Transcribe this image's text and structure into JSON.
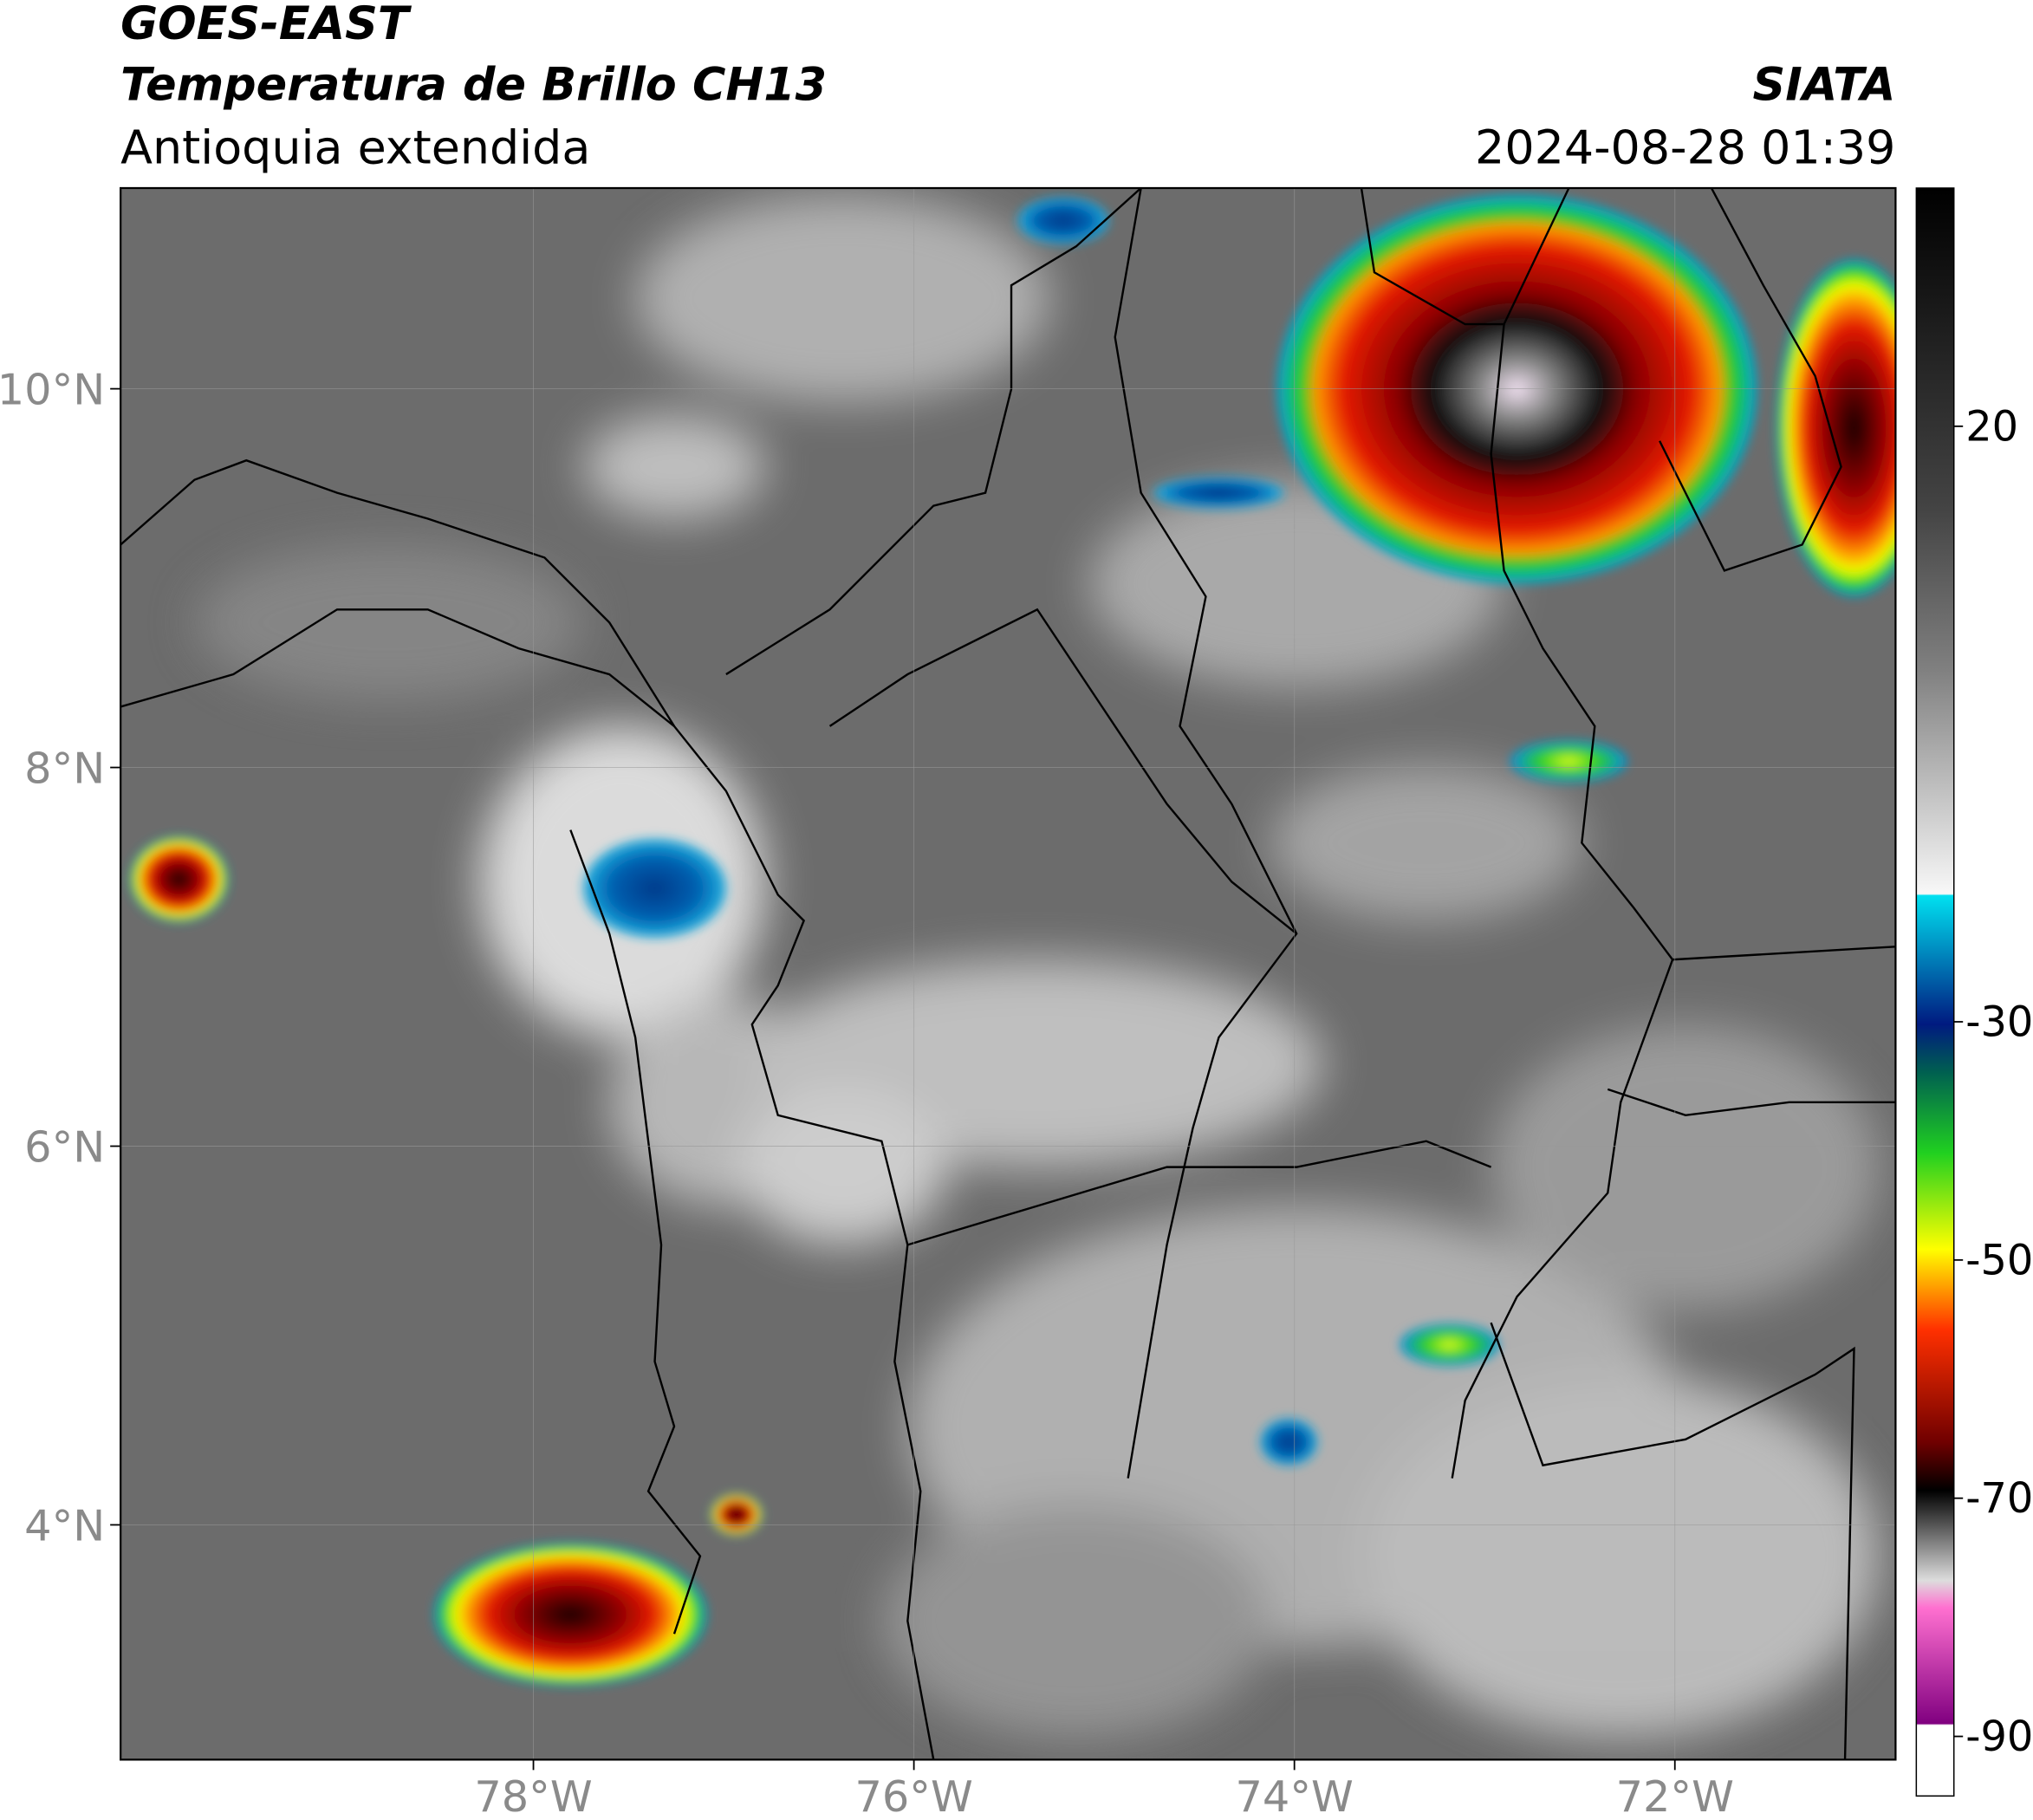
{
  "header": {
    "satellite": "GOES-EAST",
    "product": "Temperatura de Brillo CH13",
    "region": "Antioquia extendida",
    "agency": "SIATA",
    "datetime": "2024-08-28 01:39"
  },
  "map": {
    "xlim": [
      -80.17,
      -70.84
    ],
    "ylim": [
      2.76,
      11.06
    ],
    "xticks": [
      {
        "value": -78,
        "label": "78°W"
      },
      {
        "value": -76,
        "label": "76°W"
      },
      {
        "value": -74,
        "label": "74°W"
      },
      {
        "value": -72,
        "label": "72°W"
      }
    ],
    "yticks": [
      {
        "value": 10,
        "label": "10°N"
      },
      {
        "value": 8,
        "label": "8°N"
      },
      {
        "value": 6,
        "label": "6°N"
      },
      {
        "value": 4,
        "label": "4°N"
      }
    ],
    "grid": true,
    "colorbar": {
      "clim": [
        -95,
        40
      ],
      "ticks": [
        20,
        -30,
        -50,
        -70,
        -90
      ]
    }
  }
}
